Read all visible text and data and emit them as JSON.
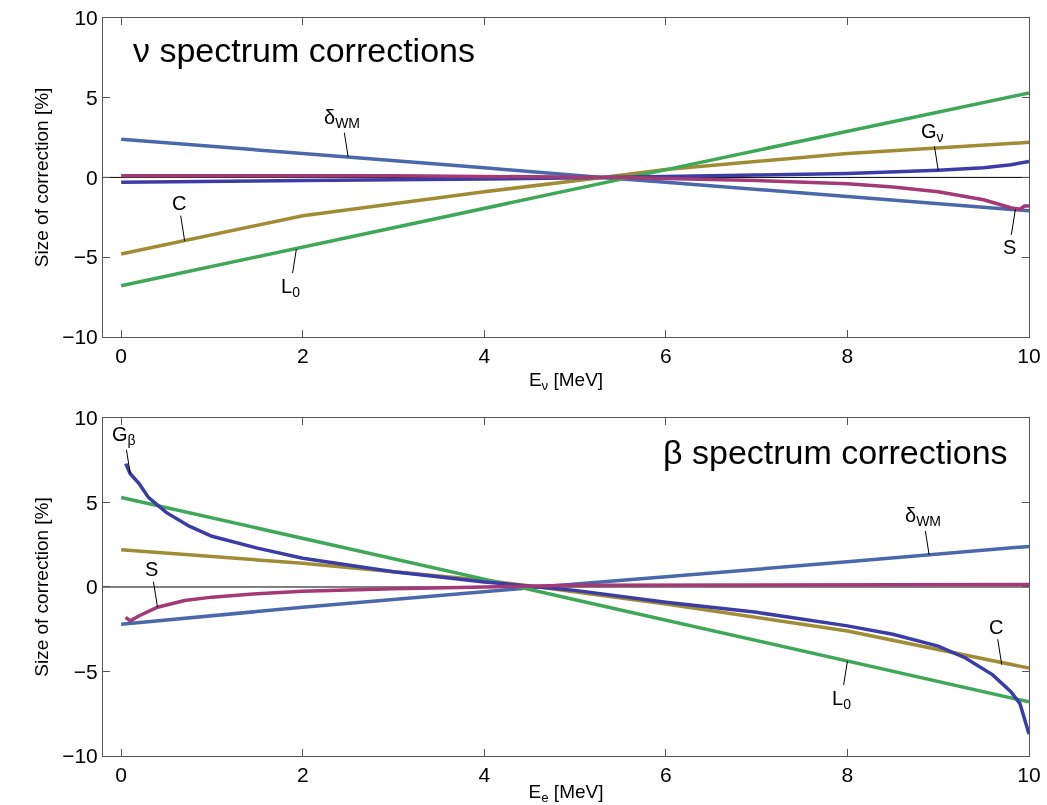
{
  "chart_data": [
    {
      "type": "line",
      "title": "ν spectrum corrections",
      "xlabel": "E$_{ν}$ [MeV]",
      "ylabel": "Size of correction [%]",
      "xlim": [
        -0.2,
        10
      ],
      "xticks": [
        0,
        2,
        4,
        6,
        8,
        10
      ],
      "ylim": [
        -10,
        10
      ],
      "yticks": [
        -10,
        -5,
        0,
        5,
        10
      ],
      "grid": false,
      "ref_lines": [
        {
          "axis": "y",
          "value": 0,
          "color": "#000000"
        }
      ],
      "series": [
        {
          "color": "#4a68ac",
          "x": [
            0,
            2,
            4,
            5.3,
            6,
            8,
            10
          ],
          "values": [
            2.4,
            1.5,
            0.6,
            0,
            -0.3,
            -1.2,
            -2.1
          ]
        },
        {
          "color": "#a08c35",
          "x": [
            0,
            2,
            4,
            5.3,
            6,
            8,
            10
          ],
          "values": [
            -4.8,
            -2.4,
            -0.9,
            0,
            0.5,
            1.5,
            2.2
          ]
        },
        {
          "color": "#3ea858",
          "x": [
            0,
            5.6,
            10
          ],
          "values": [
            -6.8,
            0,
            5.3
          ]
        },
        {
          "color": "#3c3ca6",
          "x": [
            0,
            2,
            4,
            5.3,
            7,
            8,
            9,
            9.5,
            9.8,
            10
          ],
          "values": [
            -0.3,
            -0.2,
            -0.1,
            0,
            0.15,
            0.25,
            0.45,
            0.6,
            0.8,
            1.0
          ]
        },
        {
          "color": "#a33a76",
          "x": [
            0,
            3,
            5.5,
            7,
            8,
            8.5,
            9,
            9.5,
            9.8,
            9.9,
            9.95,
            10
          ],
          "values": [
            0.1,
            0.1,
            0,
            -0.2,
            -0.4,
            -0.6,
            -0.9,
            -1.4,
            -1.9,
            -2.0,
            -1.8,
            -1.8
          ]
        }
      ],
      "annotations": [
        {
          "text": "δ$_{WM}$",
          "x": 2.5,
          "y": 1.3
        },
        {
          "text": "C",
          "x": 0.7,
          "y": -4.0
        },
        {
          "text": "L$_{0}$",
          "x": 1.93,
          "y": -4.5
        },
        {
          "text": "G$_{ν}$",
          "x": 9.0,
          "y": 0.45
        },
        {
          "text": "S",
          "x": 9.85,
          "y": -2.0
        }
      ]
    },
    {
      "type": "line",
      "title": "β spectrum corrections",
      "xlabel": "E$_{e}$ [MeV]",
      "ylabel": "Size of correction [%]",
      "xlim": [
        -0.2,
        10
      ],
      "xticks": [
        0,
        2,
        4,
        6,
        8,
        10
      ],
      "ylim": [
        -10,
        10
      ],
      "yticks": [
        -10,
        -5,
        0,
        5,
        10
      ],
      "grid": false,
      "ref_lines": [
        {
          "axis": "y",
          "value": 0,
          "color": "#000000"
        }
      ],
      "series": [
        {
          "color": "#4a68ac",
          "x": [
            0,
            2,
            4.6,
            6,
            8,
            10
          ],
          "values": [
            -2.2,
            -1.2,
            0,
            0.6,
            1.5,
            2.4
          ]
        },
        {
          "color": "#a08c35",
          "x": [
            0,
            2,
            4,
            4.6,
            6,
            8,
            10
          ],
          "values": [
            2.2,
            1.4,
            0.4,
            0,
            -1.0,
            -2.6,
            -4.8
          ]
        },
        {
          "color": "#3ea858",
          "x": [
            0,
            5,
            10
          ],
          "values": [
            5.3,
            -0.75,
            -6.8
          ]
        },
        {
          "color": "#3c3ca6",
          "x": [
            0.05,
            0.1,
            0.2,
            0.3,
            0.5,
            0.75,
            1,
            1.5,
            2,
            2.5,
            3,
            4,
            4.6,
            5,
            6,
            7,
            8,
            8.5,
            9,
            9.3,
            9.6,
            9.8,
            9.9,
            9.95,
            10
          ],
          "values": [
            7.3,
            6.7,
            6.1,
            5.3,
            4.4,
            3.6,
            3.0,
            2.3,
            1.7,
            1.3,
            0.9,
            0.3,
            0,
            -0.2,
            -0.9,
            -1.5,
            -2.3,
            -2.8,
            -3.5,
            -4.2,
            -5.2,
            -6.2,
            -6.9,
            -7.8,
            -8.7
          ]
        },
        {
          "color": "#a33a76",
          "x": [
            0.05,
            0.1,
            0.2,
            0.4,
            0.7,
            1,
            1.5,
            2,
            3,
            4,
            5,
            10
          ],
          "values": [
            -1.8,
            -2.0,
            -1.7,
            -1.2,
            -0.8,
            -0.6,
            -0.4,
            -0.25,
            -0.1,
            0,
            0.1,
            0.15
          ]
        }
      ],
      "annotations": [
        {
          "text": "G$_{β}$",
          "x": 0.1,
          "y": 6.7
        },
        {
          "text": "S",
          "x": 0.4,
          "y": -1.2
        },
        {
          "text": "δ$_{WM}$",
          "x": 8.9,
          "y": 1.9
        },
        {
          "text": "C",
          "x": 9.7,
          "y": -4.6
        },
        {
          "text": "L$_{0}$",
          "x": 8.0,
          "y": -4.38
        }
      ]
    }
  ]
}
